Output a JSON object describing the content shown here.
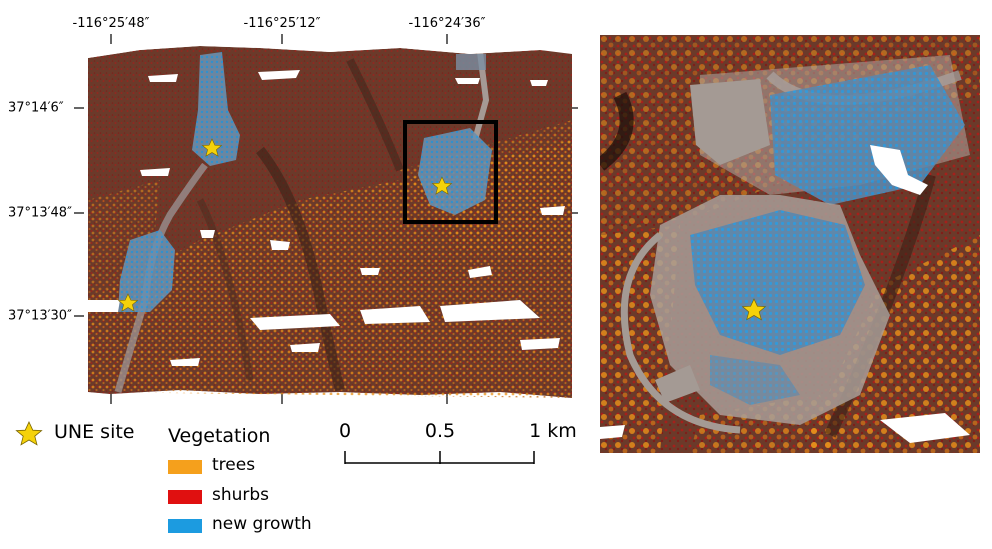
{
  "map": {
    "top_coords": [
      "-116°25′48″",
      "-116°25′12″",
      "-116°24′36″"
    ],
    "left_coords": [
      "37°14′6″",
      "37°13′48″",
      "37°13′30″"
    ]
  },
  "legend": {
    "site_label": "UNE site",
    "vegetation_title": "Vegetation",
    "items": [
      {
        "label": "trees",
        "color": "#f5a01c"
      },
      {
        "label": "shurbs",
        "color": "#e01010"
      },
      {
        "label": "new growth",
        "color": "#1c9be0"
      }
    ],
    "star_color": "#f5d20a"
  },
  "scalebar": {
    "labels": [
      "0",
      "0.5",
      "1 km"
    ]
  }
}
